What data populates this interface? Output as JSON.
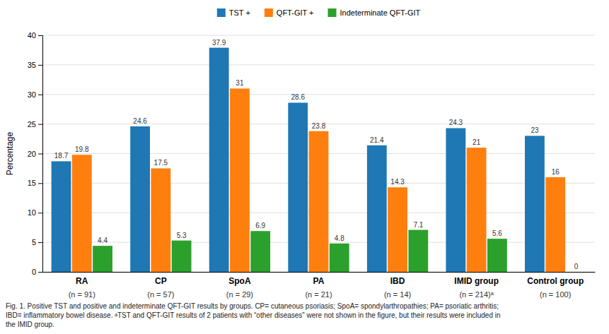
{
  "chart_data": {
    "type": "bar",
    "categories": [
      "RA",
      "CP",
      "SpoA",
      "PA",
      "IBD",
      "IMID group",
      "Control group"
    ],
    "subtitles": [
      "(n = 91)",
      "(n = 57)",
      "(n = 29)",
      "(n = 21)",
      "(n = 14)",
      "(n = 214)ᵃ",
      "(n = 100)"
    ],
    "series": [
      {
        "name": "TST +",
        "values": [
          18.7,
          24.6,
          37.9,
          28.6,
          21.4,
          24.3,
          23
        ]
      },
      {
        "name": "QFT-GIT +",
        "values": [
          19.8,
          17.5,
          31,
          23.8,
          14.3,
          21,
          16
        ]
      },
      {
        "name": "Indeterminate QFT-GIT",
        "values": [
          4.4,
          5.3,
          6.9,
          4.8,
          7.1,
          5.6,
          0
        ]
      }
    ],
    "ylim": [
      0,
      40
    ],
    "yticks": [
      0,
      5,
      10,
      15,
      20,
      25,
      30,
      35,
      40
    ],
    "y_label": "Percentage",
    "grid": true,
    "legend": "top",
    "data_labels": true,
    "caption": [
      "Fig. 1. Positive TST and positive and indeterminate QFT-GIT results by groups. CP= cutaneous psoriasis; SpoA= spondylarthropathies; PA= psoriatic arthritis;",
      "IBD= inflammatory bowel disease. ᵃTST and QFT-GIT results of 2 patients with “other diseases” were not shown in the figure, but their results were included in",
      "the IMID group."
    ]
  }
}
